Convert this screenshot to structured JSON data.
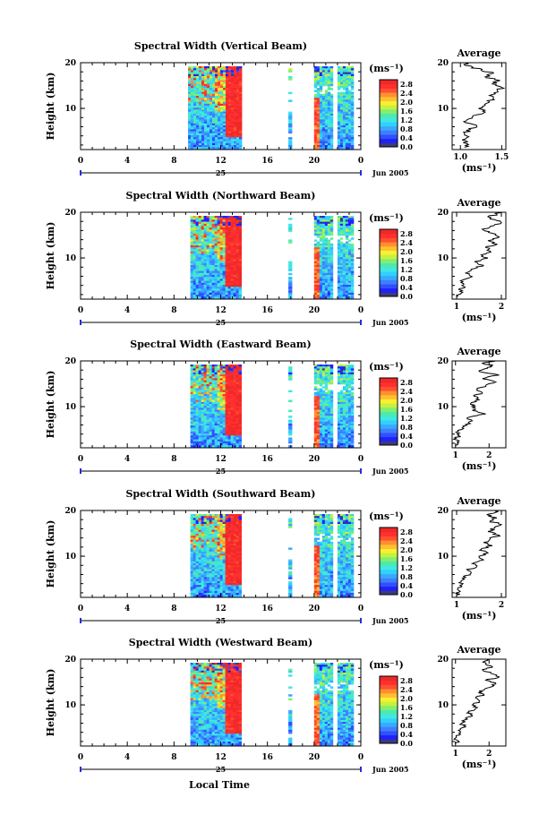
{
  "colorbar": {
    "unit": "(ms⁻¹)",
    "ticks": [
      "0.0",
      "0.4",
      "0.8",
      "1.2",
      "1.6",
      "2.0",
      "2.4",
      "2.8"
    ],
    "range": [
      0.0,
      3.0
    ],
    "colors": [
      "#3b3b7a",
      "#2020ff",
      "#3050ff",
      "#3f7fff",
      "#39a9ff",
      "#30d0ff",
      "#40e8e0",
      "#4fe8b0",
      "#7ff070",
      "#c8f040",
      "#f8f030",
      "#ffc030",
      "#ff9030",
      "#ff5030",
      "#ff3030",
      "#f02828"
    ]
  },
  "x_axis": {
    "ticks": [
      "0",
      "4",
      "8",
      "12",
      "16",
      "20",
      "0"
    ],
    "range": [
      0,
      24
    ],
    "date_tick": "25",
    "date_label": "Jun 2005",
    "title": "Local Time"
  },
  "y_axis": {
    "title": "Height (km)",
    "ticks": [
      "20",
      "10"
    ],
    "range": [
      1,
      20
    ]
  },
  "average_panel": {
    "title": "Average",
    "ylabel": "(ms⁻¹)",
    "yticks": [
      "20",
      "10"
    ]
  },
  "chart_data": [
    {
      "type": "heatmap",
      "title": "Spectral Width (Vertical Beam)",
      "data_intervals_hours": [
        [
          9.2,
          13.7
        ],
        [
          17.8,
          18.1
        ],
        [
          20.0,
          21.6
        ],
        [
          22.0,
          23.2
        ]
      ],
      "height_range_km": [
        1,
        20
      ],
      "average_profile": {
        "type": "line",
        "xlim": [
          0.9,
          1.55
        ],
        "xticks": [
          "1.0",
          "1.5"
        ],
        "x_ms": [
          1.05,
          1.08,
          1.02,
          1.1,
          1.05,
          1.12,
          1.2,
          1.06,
          1.1,
          1.15,
          1.3,
          1.22,
          1.3,
          1.35,
          1.4,
          1.38,
          1.45,
          1.5,
          1.38,
          1.48,
          1.3,
          1.4,
          1.25,
          1.15,
          1.05,
          1.1
        ],
        "height_km": [
          1.5,
          2.3,
          3.1,
          3.8,
          4.6,
          5.4,
          6.1,
          6.9,
          7.7,
          8.4,
          9.2,
          10.0,
          10.7,
          11.5,
          12.3,
          13.0,
          13.8,
          14.6,
          15.4,
          16.1,
          16.9,
          17.7,
          18.4,
          19.0,
          19.5,
          20.0
        ]
      }
    },
    {
      "type": "heatmap",
      "title": "Spectral Width (Northward Beam)",
      "data_intervals_hours": [
        [
          9.4,
          13.7
        ],
        [
          17.8,
          18.1
        ],
        [
          20.0,
          21.6
        ],
        [
          22.0,
          23.2
        ]
      ],
      "height_range_km": [
        1,
        20
      ],
      "average_profile": {
        "type": "line",
        "xlim": [
          0.9,
          2.1
        ],
        "xticks": [
          "1",
          "2"
        ],
        "x_ms": [
          1.0,
          1.1,
          1.05,
          1.15,
          1.1,
          1.2,
          1.3,
          1.25,
          1.4,
          1.6,
          1.4,
          1.7,
          1.55,
          1.75,
          1.65,
          1.9,
          1.7,
          1.95,
          1.8,
          1.6,
          1.75,
          2.0,
          1.85,
          1.7,
          1.9,
          1.95
        ],
        "height_km": [
          1.5,
          2.3,
          3.1,
          3.8,
          4.6,
          5.4,
          6.1,
          6.9,
          7.7,
          8.4,
          9.2,
          10.0,
          10.7,
          11.5,
          12.3,
          13.0,
          13.8,
          14.6,
          15.4,
          16.1,
          16.9,
          17.7,
          18.4,
          19.0,
          19.5,
          20.0
        ]
      }
    },
    {
      "type": "heatmap",
      "title": "Spectral Width (Eastward Beam)",
      "data_intervals_hours": [
        [
          9.4,
          13.7
        ],
        [
          17.8,
          18.1
        ],
        [
          20.0,
          21.6
        ],
        [
          22.0,
          23.2
        ]
      ],
      "height_range_km": [
        1,
        20
      ],
      "average_profile": {
        "type": "line",
        "xlim": [
          0.9,
          2.5
        ],
        "xticks": [
          "1",
          "2"
        ],
        "x_ms": [
          1.0,
          1.05,
          1.02,
          1.1,
          1.08,
          1.2,
          1.3,
          1.5,
          1.4,
          1.9,
          1.5,
          1.6,
          1.45,
          1.7,
          1.55,
          1.8,
          1.65,
          1.9,
          2.2,
          1.8,
          2.3,
          1.7,
          1.95,
          2.1,
          1.8,
          2.2
        ],
        "height_km": [
          1.5,
          2.3,
          3.1,
          3.8,
          4.6,
          5.4,
          6.1,
          6.9,
          7.7,
          8.4,
          9.2,
          10.0,
          10.7,
          11.5,
          12.3,
          13.0,
          13.8,
          14.6,
          15.4,
          16.1,
          16.9,
          17.7,
          18.4,
          19.0,
          19.5,
          20.0
        ]
      }
    },
    {
      "type": "heatmap",
      "title": "Spectral Width (Southward Beam)",
      "data_intervals_hours": [
        [
          9.4,
          13.7
        ],
        [
          17.8,
          18.1
        ],
        [
          20.0,
          21.6
        ],
        [
          22.0,
          23.2
        ]
      ],
      "height_range_km": [
        1,
        20
      ],
      "average_profile": {
        "type": "line",
        "xlim": [
          0.9,
          2.1
        ],
        "xticks": [
          "1",
          "2"
        ],
        "x_ms": [
          1.0,
          1.08,
          1.03,
          1.12,
          1.1,
          1.2,
          1.3,
          1.25,
          1.45,
          1.35,
          1.6,
          1.5,
          1.7,
          1.55,
          1.8,
          1.6,
          1.75,
          1.95,
          1.7,
          1.85,
          2.0,
          1.75,
          1.9,
          1.7,
          1.85,
          1.95
        ],
        "height_km": [
          1.5,
          2.3,
          3.1,
          3.8,
          4.6,
          5.4,
          6.1,
          6.9,
          7.7,
          8.4,
          9.2,
          10.0,
          10.7,
          11.5,
          12.3,
          13.0,
          13.8,
          14.6,
          15.4,
          16.1,
          16.9,
          17.7,
          18.4,
          19.0,
          19.5,
          20.0
        ]
      }
    },
    {
      "type": "heatmap",
      "title": "Spectral Width (Westward Beam)",
      "data_intervals_hours": [
        [
          9.4,
          13.7
        ],
        [
          17.8,
          18.1
        ],
        [
          20.0,
          21.6
        ],
        [
          22.0,
          23.2
        ]
      ],
      "height_range_km": [
        1,
        20
      ],
      "average_profile": {
        "type": "line",
        "xlim": [
          0.9,
          2.5
        ],
        "xticks": [
          "1",
          "2"
        ],
        "x_ms": [
          1.0,
          1.05,
          1.02,
          1.1,
          1.15,
          1.25,
          1.2,
          1.35,
          1.5,
          1.4,
          1.6,
          1.5,
          1.7,
          1.6,
          1.85,
          1.7,
          2.0,
          2.2,
          1.9,
          2.3,
          2.05,
          1.8,
          2.1,
          1.9,
          1.85,
          2.0
        ],
        "height_km": [
          1.5,
          2.3,
          3.1,
          3.8,
          4.6,
          5.4,
          6.1,
          6.9,
          7.7,
          8.4,
          9.2,
          10.0,
          10.7,
          11.5,
          12.3,
          13.0,
          13.8,
          14.6,
          15.4,
          16.1,
          16.9,
          17.7,
          18.4,
          19.0,
          19.5,
          20.0
        ]
      }
    }
  ]
}
